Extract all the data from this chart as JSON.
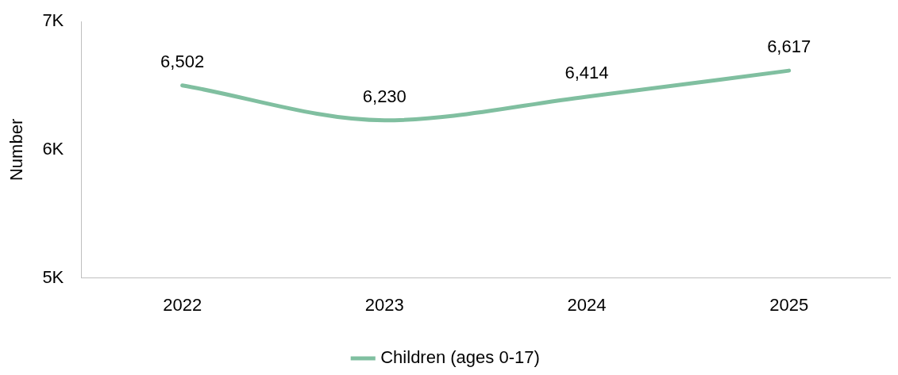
{
  "chart_data": {
    "type": "line",
    "ylabel": "Number",
    "categories": [
      "2022",
      "2023",
      "2024",
      "2025"
    ],
    "series": [
      {
        "name": "Children (ages 0-17)",
        "color": "#80bfa0",
        "values": [
          6502,
          6230,
          6414,
          6617
        ],
        "value_labels": [
          "6,502",
          "6,230",
          "6,414",
          "6,617"
        ]
      }
    ],
    "ylim": [
      5000,
      7000
    ],
    "yticks": [
      {
        "value": 5000,
        "label": "5K"
      },
      {
        "value": 6000,
        "label": "6K"
      },
      {
        "value": 7000,
        "label": "7K"
      }
    ],
    "grid": false,
    "legend": "bottom",
    "marker": "none",
    "line_style": "solid"
  }
}
